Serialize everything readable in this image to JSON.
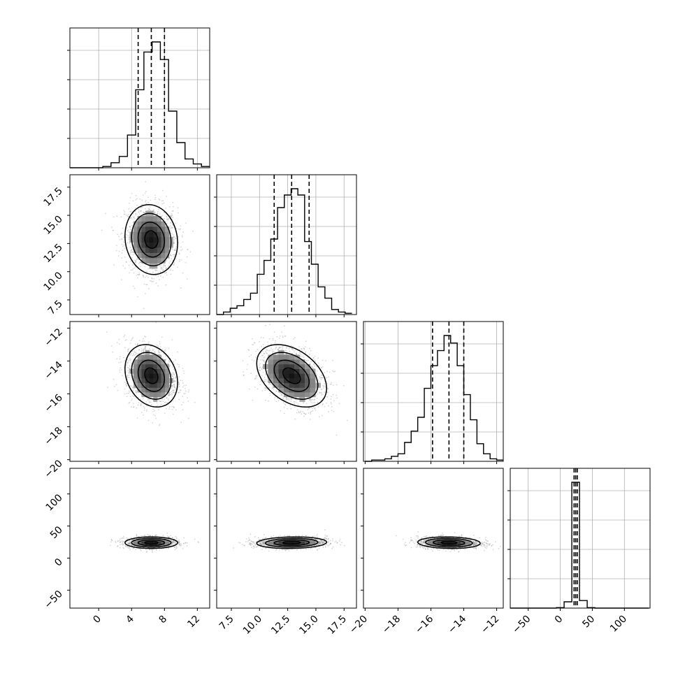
{
  "chart_data": {
    "type": "corner",
    "grid": true,
    "parameters": [
      {
        "index": 0,
        "range": [
          -3.5,
          13.5
        ],
        "ticks": [
          0,
          4,
          8,
          12
        ],
        "tick_labels": [
          "0",
          "4",
          "8",
          "12"
        ],
        "mean": 6.4,
        "sd": 1.6,
        "quantiles": [
          4.8,
          6.4,
          8.0
        ]
      },
      {
        "index": 1,
        "range": [
          6.2,
          18.6
        ],
        "ticks": [
          7.5,
          10.0,
          12.5,
          15.0,
          17.5
        ],
        "tick_labels": [
          "7.5",
          "10.0",
          "12.5",
          "15.0",
          "17.5"
        ],
        "mean": 12.85,
        "sd": 1.55,
        "quantiles": [
          11.3,
          12.85,
          14.4
        ]
      },
      {
        "index": 2,
        "range": [
          -20.1,
          -11.6
        ],
        "ticks": [
          -20,
          -18,
          -16,
          -14,
          -12
        ],
        "tick_labels": [
          "−20",
          "−18",
          "−16",
          "−14",
          "−12"
        ],
        "mean": -14.9,
        "sd": 0.95,
        "quantiles": [
          -15.9,
          -14.9,
          -14.0
        ]
      },
      {
        "index": 3,
        "range": [
          -78,
          140
        ],
        "ticks": [
          -50,
          0,
          50,
          100
        ],
        "tick_labels": [
          "−50",
          "0",
          "50",
          "100"
        ],
        "mean": 24.0,
        "sd": 4.5,
        "quantiles": [
          21.5,
          24.0,
          26.5
        ]
      }
    ],
    "diagonal_histograms": [
      {
        "param": 0,
        "bins": [
          -3.5,
          -2.5,
          -1.5,
          -0.5,
          0.5,
          1.5,
          2.5,
          3.5,
          4.5,
          5.5,
          6.5,
          7.5,
          8.5,
          9.5,
          10.5,
          11.5,
          12.5,
          13.5
        ],
        "counts": [
          0,
          0,
          0,
          0,
          0.01,
          0.04,
          0.09,
          0.26,
          0.62,
          0.92,
          1.0,
          0.86,
          0.45,
          0.2,
          0.07,
          0.03,
          0.01
        ]
      },
      {
        "param": 1,
        "bins": [
          6.2,
          6.8,
          7.4,
          8.0,
          8.6,
          9.2,
          9.8,
          10.4,
          11.0,
          11.6,
          12.2,
          12.8,
          13.4,
          14.0,
          14.6,
          15.2,
          15.8,
          16.4,
          17.0,
          17.6,
          18.2
        ],
        "counts": [
          0,
          0.02,
          0.05,
          0.07,
          0.12,
          0.17,
          0.32,
          0.43,
          0.6,
          0.85,
          0.95,
          1.0,
          0.95,
          0.58,
          0.4,
          0.22,
          0.13,
          0.04,
          0.02,
          0.01
        ]
      },
      {
        "param": 2,
        "bins": [
          -20.0,
          -19.6,
          -19.2,
          -18.8,
          -18.4,
          -18.0,
          -17.6,
          -17.2,
          -16.8,
          -16.4,
          -16.0,
          -15.6,
          -15.2,
          -14.8,
          -14.4,
          -14.0,
          -13.6,
          -13.2,
          -12.8,
          -12.4,
          -12.0,
          -11.6
        ],
        "counts": [
          0,
          0.01,
          0.01,
          0.02,
          0.04,
          0.06,
          0.15,
          0.24,
          0.35,
          0.58,
          0.76,
          0.88,
          1.0,
          0.94,
          0.76,
          0.53,
          0.33,
          0.14,
          0.06,
          0.02,
          0.01
        ]
      },
      {
        "param": 3,
        "bins": [
          -78,
          -66,
          -54,
          -42,
          -30,
          -18,
          -6,
          6,
          18,
          30,
          42,
          54,
          66,
          78,
          90,
          102,
          114,
          126,
          138
        ],
        "counts": [
          0,
          0,
          0,
          0,
          0,
          0,
          0.004,
          0.05,
          1.0,
          0.06,
          0.004,
          0,
          0,
          0,
          0,
          0,
          0,
          0
        ]
      }
    ],
    "pairs": [
      {
        "x": 0,
        "y": 1,
        "correlation": -0.1
      },
      {
        "x": 0,
        "y": 2,
        "correlation": -0.22
      },
      {
        "x": 1,
        "y": 2,
        "correlation": -0.4
      },
      {
        "x": 0,
        "y": 3,
        "correlation": 0.0
      },
      {
        "x": 1,
        "y": 3,
        "correlation": 0.1
      },
      {
        "x": 2,
        "y": 3,
        "correlation": -0.1
      }
    ],
    "colors": {
      "ink": "#000000",
      "grid": "#b0b0b0",
      "points": "#8c8c8c"
    }
  }
}
